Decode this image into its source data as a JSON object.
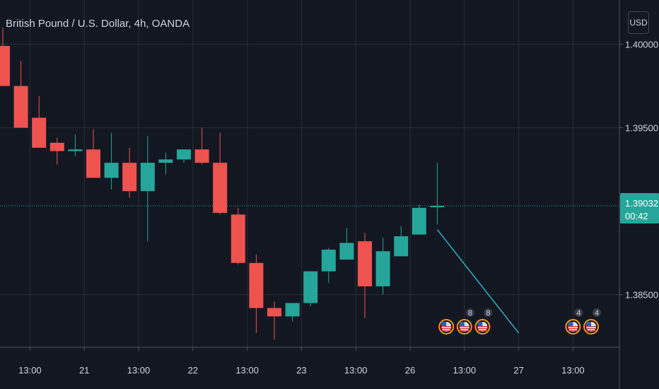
{
  "header": {
    "symbol_title": "British Pound / U.S. Dollar, 4h, OANDA",
    "currency_button": "USD"
  },
  "chart_data": {
    "type": "candlestick",
    "title": "British Pound / U.S. Dollar, 4h, OANDA",
    "ylim": [
      1.38185,
      1.40265
    ],
    "grid": true,
    "y_ticks": [
      "1.40000",
      "1.39500",
      "1.38500"
    ],
    "x_ticks": [
      {
        "label": "13:00",
        "index": 1.5
      },
      {
        "label": "21",
        "index": 4.5
      },
      {
        "label": "13:00",
        "index": 7.5
      },
      {
        "label": "22",
        "index": 10.5
      },
      {
        "label": "13:00",
        "index": 13.5
      },
      {
        "label": "23",
        "index": 16.5
      },
      {
        "label": "13:00",
        "index": 19.5
      },
      {
        "label": "26",
        "index": 22.5
      },
      {
        "label": "13:00",
        "index": 25.5
      },
      {
        "label": "27",
        "index": 28.5
      },
      {
        "label": "13:00",
        "index": 31.5
      }
    ],
    "candles": [
      {
        "o": 1.3999,
        "h": 1.401,
        "l": 1.3975,
        "c": 1.3975
      },
      {
        "o": 1.3975,
        "h": 1.399,
        "l": 1.395,
        "c": 1.395
      },
      {
        "o": 1.3956,
        "h": 1.3969,
        "l": 1.3938,
        "c": 1.3938
      },
      {
        "o": 1.3941,
        "h": 1.3944,
        "l": 1.3928,
        "c": 1.3936
      },
      {
        "o": 1.3936,
        "h": 1.3946,
        "l": 1.3933,
        "c": 1.3937
      },
      {
        "o": 1.3937,
        "h": 1.3949,
        "l": 1.392,
        "c": 1.392
      },
      {
        "o": 1.392,
        "h": 1.3947,
        "l": 1.3913,
        "c": 1.3929
      },
      {
        "o": 1.3929,
        "h": 1.3938,
        "l": 1.3908,
        "c": 1.3912
      },
      {
        "o": 1.3912,
        "h": 1.3945,
        "l": 1.3882,
        "c": 1.3929
      },
      {
        "o": 1.3929,
        "h": 1.3935,
        "l": 1.3922,
        "c": 1.3931
      },
      {
        "o": 1.3931,
        "h": 1.3937,
        "l": 1.3929,
        "c": 1.3937
      },
      {
        "o": 1.3937,
        "h": 1.395,
        "l": 1.3928,
        "c": 1.3929
      },
      {
        "o": 1.3929,
        "h": 1.3947,
        "l": 1.3898,
        "c": 1.3899
      },
      {
        "o": 1.3898,
        "h": 1.3902,
        "l": 1.3868,
        "c": 1.3869
      },
      {
        "o": 1.3869,
        "h": 1.3874,
        "l": 1.3827,
        "c": 1.3842
      },
      {
        "o": 1.3842,
        "h": 1.3846,
        "l": 1.3823,
        "c": 1.3837
      },
      {
        "o": 1.3837,
        "h": 1.3845,
        "l": 1.3834,
        "c": 1.3845
      },
      {
        "o": 1.3845,
        "h": 1.3864,
        "l": 1.3843,
        "c": 1.3864
      },
      {
        "o": 1.3864,
        "h": 1.3878,
        "l": 1.3857,
        "c": 1.3877
      },
      {
        "o": 1.3871,
        "h": 1.389,
        "l": 1.3871,
        "c": 1.3881
      },
      {
        "o": 1.3882,
        "h": 1.3887,
        "l": 1.3836,
        "c": 1.3855
      },
      {
        "o": 1.3855,
        "h": 1.3884,
        "l": 1.385,
        "c": 1.3876
      },
      {
        "o": 1.3873,
        "h": 1.3891,
        "l": 1.3873,
        "c": 1.3885
      },
      {
        "o": 1.3886,
        "h": 1.3904,
        "l": 1.3886,
        "c": 1.3902
      },
      {
        "o": 1.39025,
        "h": 1.3929,
        "l": 1.3892,
        "c": 1.39032
      }
    ],
    "current_price": {
      "label": "1.39032",
      "countdown": "00:42"
    },
    "forecast_line": {
      "from": {
        "index": 24,
        "value": 1.3889
      },
      "to": {
        "index": 28.5,
        "value": 1.3827
      }
    },
    "events": [
      {
        "index": 24.5,
        "count": ""
      },
      {
        "index": 25.5,
        "count": "8"
      },
      {
        "index": 26.5,
        "count": "8"
      },
      {
        "index": 31.5,
        "count": "4"
      },
      {
        "index": 32.5,
        "count": "4"
      }
    ],
    "colors": {
      "up": "#26a69a",
      "down": "#ef5350",
      "background": "#131722",
      "grid": "#2a2e39",
      "axis_text": "#d1d4dc",
      "price_line": "#26a69a",
      "forecast": "#2ab3c3",
      "event_ring": "#f7931a"
    }
  }
}
